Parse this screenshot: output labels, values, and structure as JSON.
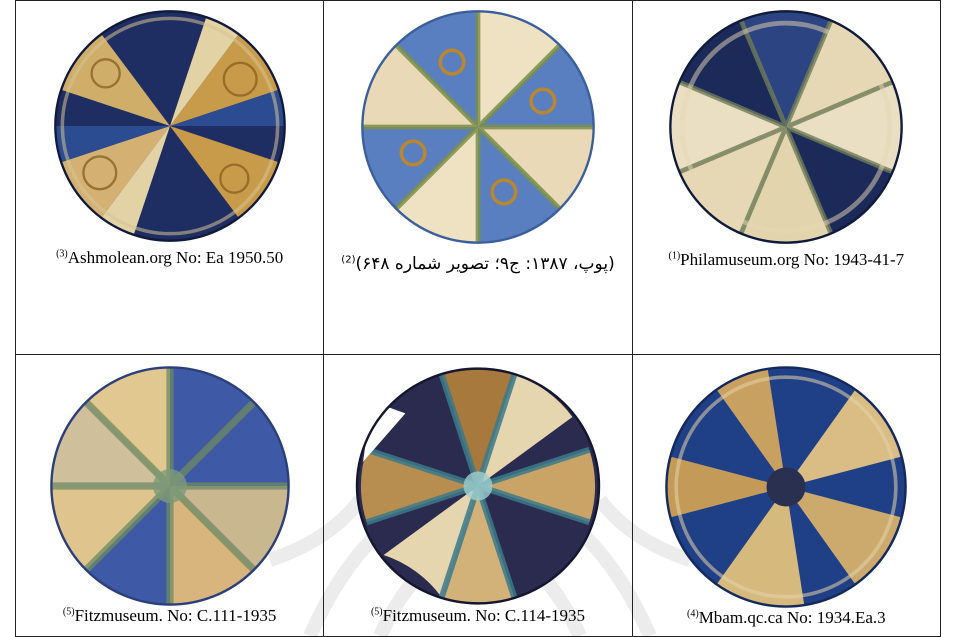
{
  "colors": {
    "cobalt_blue": "#1b2f6e",
    "mid_blue": "#3f66ad",
    "luster_gold": "#c89b4a",
    "cream": "#efe2c2",
    "border": "#222222"
  },
  "plates": [
    {
      "caption_ref": "(3)",
      "caption_text": "Ashmolean.org No: Ea 1950.50",
      "pattern": "alternating-blue-and-luster-sectors",
      "icon": "ceramic-bowl-icon"
    },
    {
      "caption_ref": "(2)",
      "caption_text": "(پوپ، ۱۳۸۷: ج۹؛ تصویر شماره ۶۴۸)",
      "pattern": "alternating-light-blue-and-cream-sectors",
      "icon": "ceramic-bowl-icon"
    },
    {
      "caption_ref": "(1)",
      "caption_text": "Philamuseum.org No: 1943-41-7",
      "pattern": "alternating-dark-blue-and-cream-sectors",
      "icon": "ceramic-bowl-icon"
    },
    {
      "caption_ref": "(5)",
      "caption_text": "Fitzmuseum. No: C.111-1935",
      "pattern": "alternating-blue-and-luster-sectors-worn",
      "icon": "ceramic-bowl-icon"
    },
    {
      "caption_ref": "(5)",
      "caption_text": "Fitzmuseum. No: C.114-1935",
      "pattern": "alternating-dark-and-luster-sectors-damaged",
      "icon": "ceramic-bowl-icon"
    },
    {
      "caption_ref": "(4)",
      "caption_text": "Mbam.qc.ca No: 1934.Ea.3",
      "pattern": "alternating-blue-and-luster-sectors",
      "icon": "ceramic-bowl-icon"
    }
  ]
}
